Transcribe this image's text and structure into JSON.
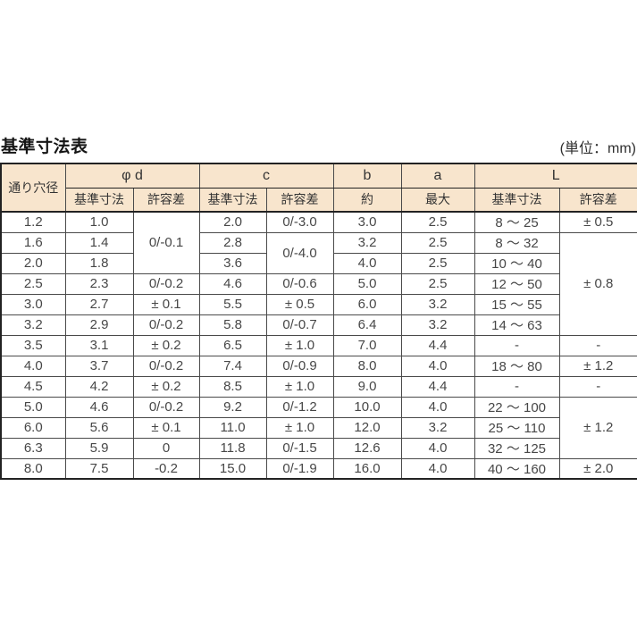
{
  "page": {
    "title": "基準寸法表",
    "unit_label": "(単位：mm)"
  },
  "colors": {
    "header_background": "#f8e5cd",
    "grid_line": "#4a4a4a",
    "outer_border": "#222222",
    "text": "#474747"
  },
  "table": {
    "header": {
      "hole": "通り穴径",
      "groups": [
        {
          "label": "φ d"
        },
        {
          "label": "c"
        },
        {
          "label": "b"
        },
        {
          "label": "a"
        },
        {
          "label": "L"
        }
      ],
      "sub": [
        "基準寸法",
        "許容差",
        "基準寸法",
        "許容差",
        "約",
        "最大",
        "基準寸法",
        "許容差"
      ]
    },
    "rows": [
      [
        {
          "t": "1.2"
        },
        {
          "t": "1.0"
        },
        {
          "t": "0/-0.1",
          "rs": 3
        },
        {
          "t": "2.0"
        },
        {
          "t": "0/-3.0"
        },
        {
          "t": "3.0"
        },
        {
          "t": "2.5"
        },
        {
          "t": "8 ～ 25"
        },
        {
          "t": "± 0.5"
        }
      ],
      [
        {
          "t": "1.6"
        },
        {
          "t": "1.4"
        },
        {
          "t": "2.8"
        },
        {
          "t": "0/-4.0",
          "rs": 2
        },
        {
          "t": "3.2"
        },
        {
          "t": "2.5"
        },
        {
          "t": "8 ～ 32"
        },
        {
          "t": "± 0.8",
          "rs": 5
        }
      ],
      [
        {
          "t": "2.0"
        },
        {
          "t": "1.8"
        },
        {
          "t": "3.6"
        },
        {
          "t": "4.0"
        },
        {
          "t": "2.5"
        },
        {
          "t": "10 ～ 40"
        }
      ],
      [
        {
          "t": "2.5"
        },
        {
          "t": "2.3"
        },
        {
          "t": "0/-0.2"
        },
        {
          "t": "4.6"
        },
        {
          "t": "0/-0.6"
        },
        {
          "t": "5.0"
        },
        {
          "t": "2.5"
        },
        {
          "t": "12 ～ 50"
        }
      ],
      [
        {
          "t": "3.0"
        },
        {
          "t": "2.7"
        },
        {
          "t": "± 0.1"
        },
        {
          "t": "5.5"
        },
        {
          "t": "± 0.5"
        },
        {
          "t": "6.0"
        },
        {
          "t": "3.2"
        },
        {
          "t": "15 ～ 55"
        }
      ],
      [
        {
          "t": "3.2"
        },
        {
          "t": "2.9"
        },
        {
          "t": "0/-0.2"
        },
        {
          "t": "5.8"
        },
        {
          "t": "0/-0.7"
        },
        {
          "t": "6.4"
        },
        {
          "t": "3.2"
        },
        {
          "t": "14 ～ 63"
        }
      ],
      [
        {
          "t": "3.5"
        },
        {
          "t": "3.1"
        },
        {
          "t": "± 0.2"
        },
        {
          "t": "6.5"
        },
        {
          "t": "± 1.0"
        },
        {
          "t": "7.0"
        },
        {
          "t": "4.4"
        },
        {
          "t": "-"
        },
        {
          "t": "-"
        }
      ],
      [
        {
          "t": "4.0"
        },
        {
          "t": "3.7"
        },
        {
          "t": "0/-0.2"
        },
        {
          "t": "7.4"
        },
        {
          "t": "0/-0.9"
        },
        {
          "t": "8.0"
        },
        {
          "t": "4.0"
        },
        {
          "t": "18 ～ 80"
        },
        {
          "t": "± 1.2"
        }
      ],
      [
        {
          "t": "4.5"
        },
        {
          "t": "4.2"
        },
        {
          "t": "± 0.2"
        },
        {
          "t": "8.5"
        },
        {
          "t": "± 1.0"
        },
        {
          "t": "9.0"
        },
        {
          "t": "4.4"
        },
        {
          "t": "-"
        },
        {
          "t": "-"
        }
      ],
      [
        {
          "t": "5.0"
        },
        {
          "t": "4.6"
        },
        {
          "t": "0/-0.2"
        },
        {
          "t": "9.2"
        },
        {
          "t": "0/-1.2"
        },
        {
          "t": "10.0"
        },
        {
          "t": "4.0"
        },
        {
          "t": "22 ～ 100"
        },
        {
          "t": "± 1.2",
          "rs": 3
        }
      ],
      [
        {
          "t": "6.0"
        },
        {
          "t": "5.6"
        },
        {
          "t": "± 0.1"
        },
        {
          "t": "11.0"
        },
        {
          "t": "± 1.0"
        },
        {
          "t": "12.0"
        },
        {
          "t": "3.2"
        },
        {
          "t": "25 ～ 110"
        }
      ],
      [
        {
          "t": "6.3"
        },
        {
          "t": "5.9"
        },
        {
          "t": "0"
        },
        {
          "t": "11.8"
        },
        {
          "t": "0/-1.5"
        },
        {
          "t": "12.6"
        },
        {
          "t": "4.0"
        },
        {
          "t": "32 ～ 125"
        }
      ],
      [
        {
          "t": "8.0"
        },
        {
          "t": "7.5"
        },
        {
          "t": "-0.2"
        },
        {
          "t": "15.0"
        },
        {
          "t": "0/-1.9"
        },
        {
          "t": "16.0"
        },
        {
          "t": "4.0"
        },
        {
          "t": "40 ～ 160"
        },
        {
          "t": "± 2.0"
        }
      ]
    ]
  }
}
